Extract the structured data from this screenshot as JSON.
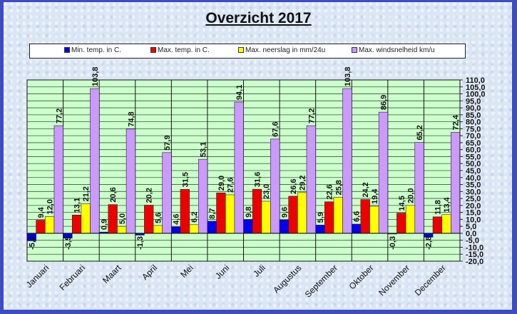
{
  "chart_data": {
    "type": "bar",
    "title": "Overzicht 2017",
    "xlabel": "",
    "ylabel": "",
    "ylim": [
      -20,
      110
    ],
    "ytick_step": 5,
    "grid": true,
    "legend_position": "top",
    "categories": [
      "Januari",
      "Februari",
      "Maart",
      "April",
      "Mei",
      "Juni",
      "Juli",
      "Augustus",
      "September",
      "Oktober",
      "November",
      "December"
    ],
    "series": [
      {
        "name": "Min. temp. in C.",
        "color": "#0000ee",
        "values": [
          -5.4,
          -3.5,
          0.9,
          -1.3,
          4.6,
          8.7,
          9.8,
          9.6,
          5.9,
          6.6,
          -0.3,
          -2.8
        ]
      },
      {
        "name": "Max. temp. in C.",
        "color": "#ee0000",
        "values": [
          9.4,
          13.1,
          20.6,
          20.2,
          31.5,
          29.0,
          31.6,
          26.6,
          22.6,
          24.2,
          14.5,
          11.8
        ]
      },
      {
        "name": "Max. neerslag in mm/24u",
        "color": "#ffff00",
        "values": [
          12.0,
          21.2,
          5.0,
          5.6,
          6.2,
          27.6,
          23.0,
          29.2,
          25.8,
          19.4,
          20.0,
          13.4
        ]
      },
      {
        "name": "Max. windsnelheid km/u",
        "color": "#cc99ff",
        "values": [
          77.2,
          103.8,
          74.8,
          57.9,
          53.1,
          94.1,
          67.6,
          77.2,
          103.8,
          86.9,
          65.2,
          72.4
        ]
      }
    ],
    "decimal_separator": ","
  },
  "colors": {
    "plot_background": "#ccffcc",
    "frame_border": "#3b4cc4"
  }
}
